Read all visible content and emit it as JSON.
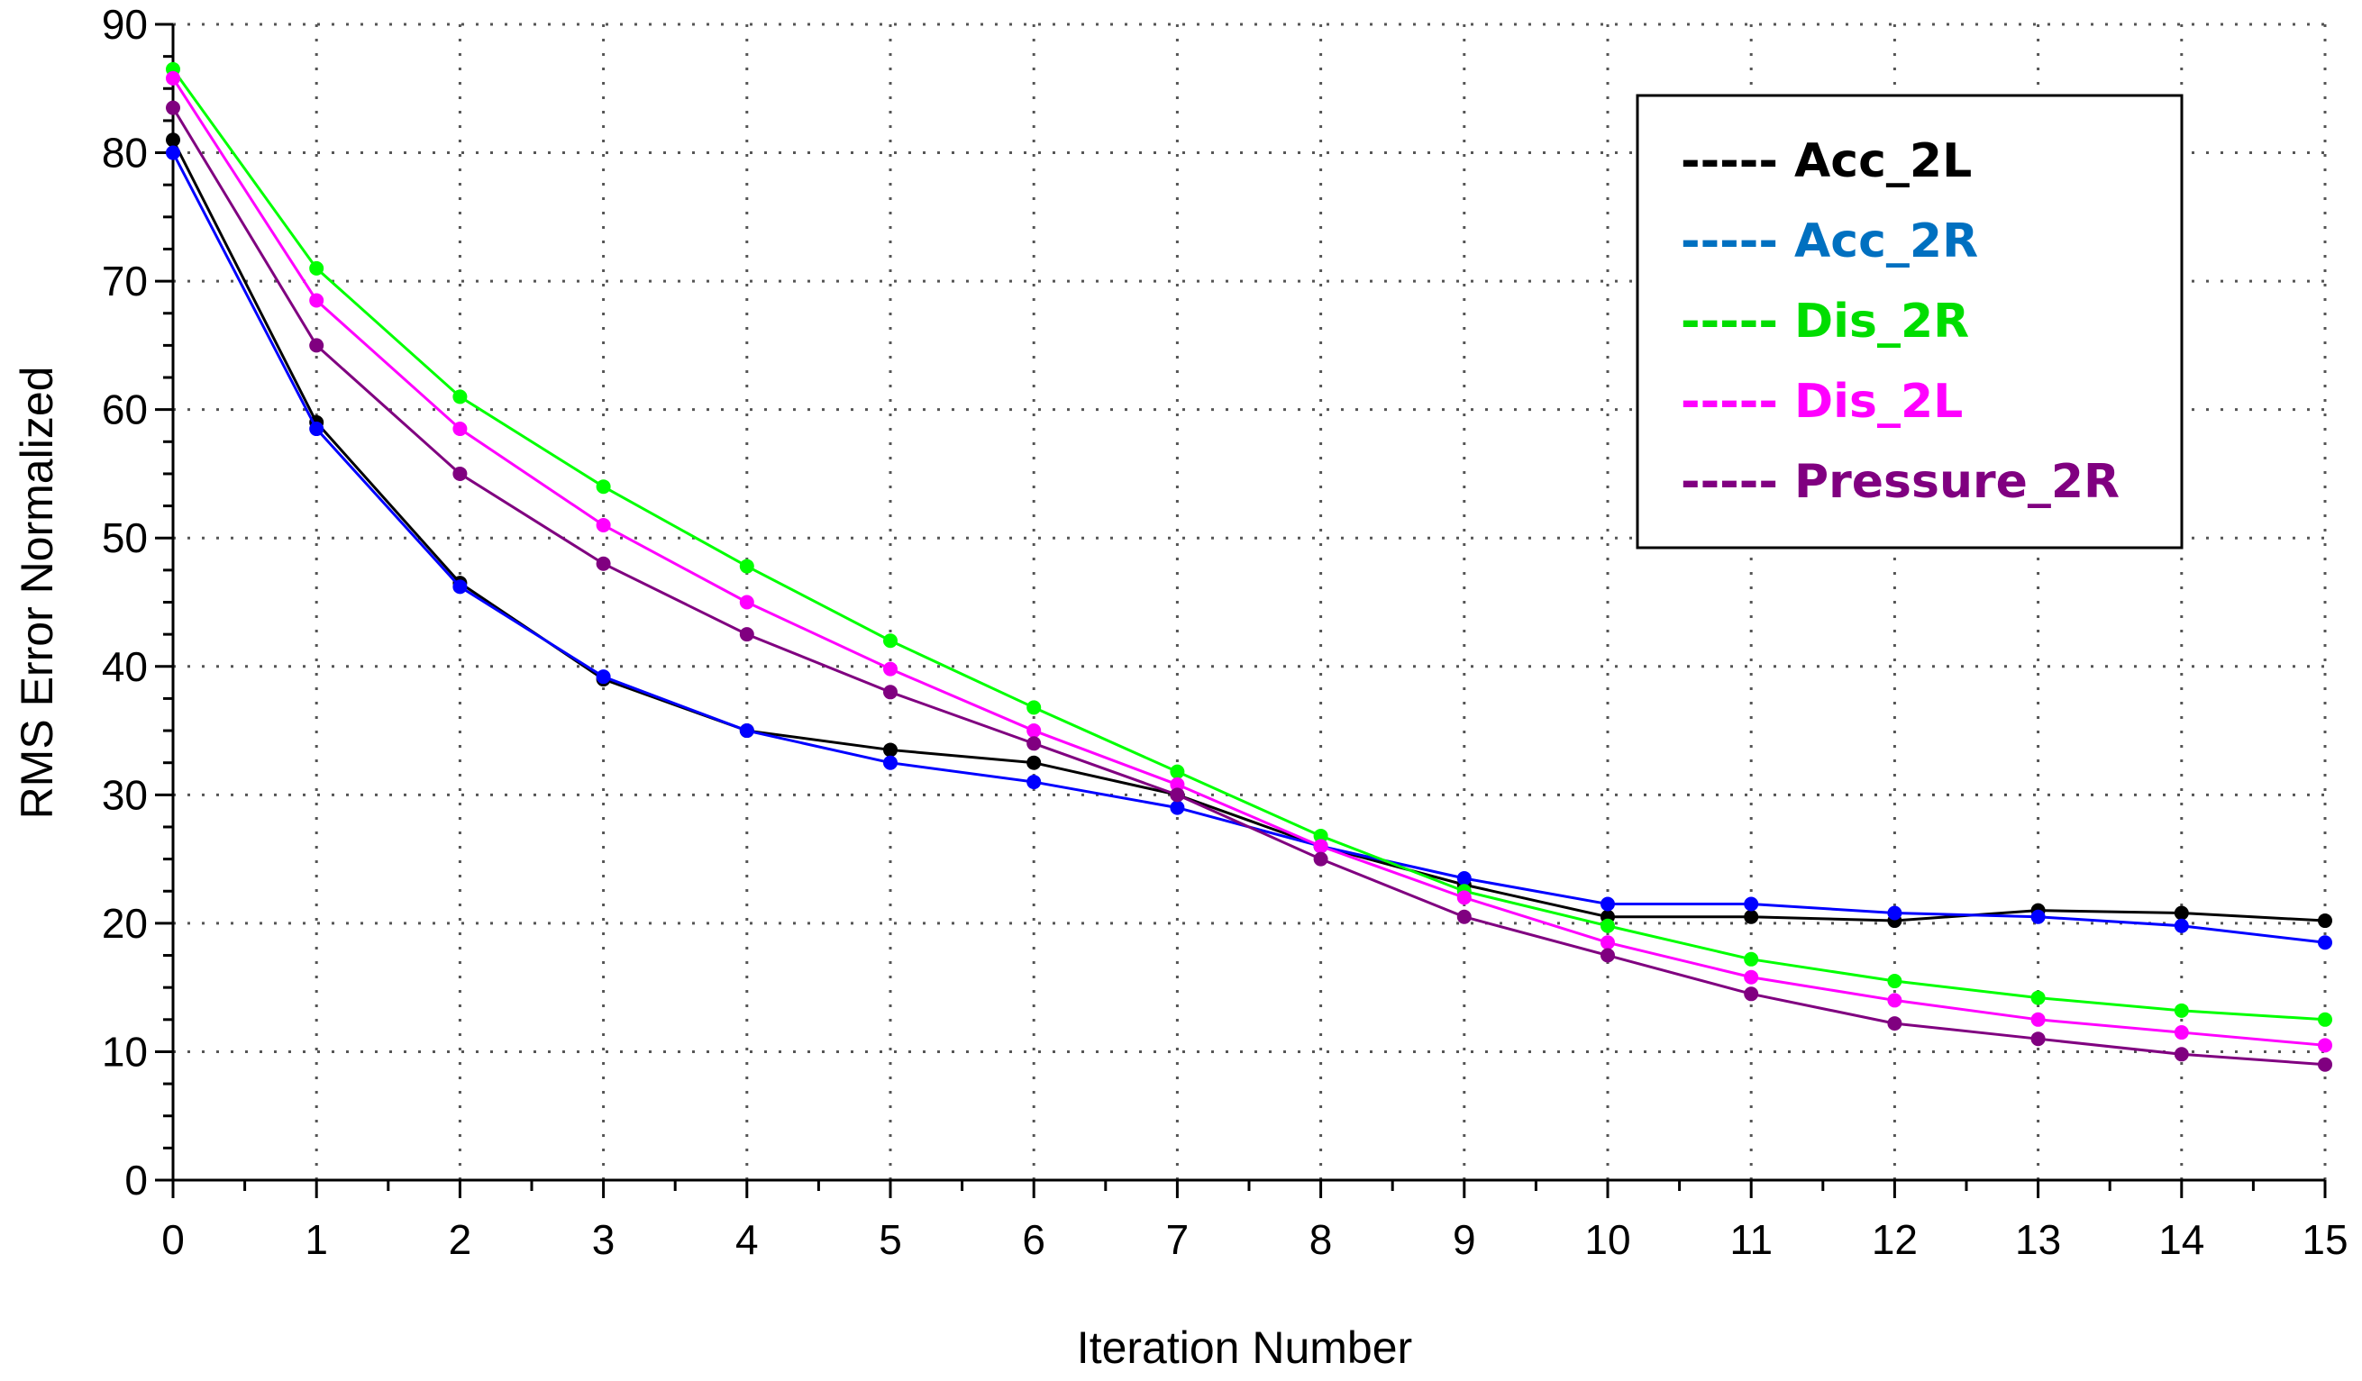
{
  "chart_data": {
    "type": "line",
    "title": "",
    "xlabel": "Iteration Number",
    "ylabel": "RMS Error Normalized",
    "xlim": [
      0,
      15
    ],
    "ylim": [
      0,
      90
    ],
    "x_ticks": [
      0,
      1,
      2,
      3,
      4,
      5,
      6,
      7,
      8,
      9,
      10,
      11,
      12,
      13,
      14,
      15
    ],
    "y_ticks": [
      0,
      10,
      20,
      30,
      40,
      50,
      60,
      70,
      80,
      90
    ],
    "grid": true,
    "legend_position": "top-right",
    "x": [
      0,
      1,
      2,
      3,
      4,
      5,
      6,
      7,
      8,
      9,
      10,
      11,
      12,
      13,
      14,
      15
    ],
    "series": [
      {
        "name": "Acc_2L",
        "legend_label": "----- Acc_2L",
        "color": "#000000",
        "values": [
          81,
          59,
          46.5,
          39,
          35,
          33.5,
          32.5,
          30,
          26,
          23,
          20.5,
          20.5,
          20.2,
          21,
          20.8,
          20.2
        ]
      },
      {
        "name": "Acc_2R",
        "legend_label": "----- Acc_2R",
        "color": "#0000ff",
        "legend_color": "#0070c0",
        "values": [
          80,
          58.5,
          46.2,
          39.2,
          35,
          32.5,
          31,
          29,
          26,
          23.5,
          21.5,
          21.5,
          20.8,
          20.5,
          19.8,
          18.5
        ]
      },
      {
        "name": "Dis_2R",
        "legend_label": "----- Dis_2R",
        "color": "#00ff00",
        "legend_color": "#00dd00",
        "values": [
          86.5,
          71,
          61,
          54,
          47.8,
          42,
          36.8,
          31.8,
          26.8,
          22.5,
          19.8,
          17.2,
          15.5,
          14.2,
          13.2,
          12.5
        ]
      },
      {
        "name": "Dis_2L",
        "legend_label": "----- Dis_2L",
        "color": "#ff00ff",
        "values": [
          85.8,
          68.5,
          58.5,
          51,
          45,
          39.8,
          35,
          30.8,
          26,
          22,
          18.5,
          15.8,
          14,
          12.5,
          11.5,
          10.5
        ]
      },
      {
        "name": "Pressure_2R",
        "legend_label": "----- Pressure_2R",
        "color": "#800080",
        "values": [
          83.5,
          65,
          55,
          48,
          42.5,
          38,
          34,
          30,
          25,
          20.5,
          17.5,
          14.5,
          12.2,
          11,
          9.8,
          9
        ]
      }
    ]
  }
}
